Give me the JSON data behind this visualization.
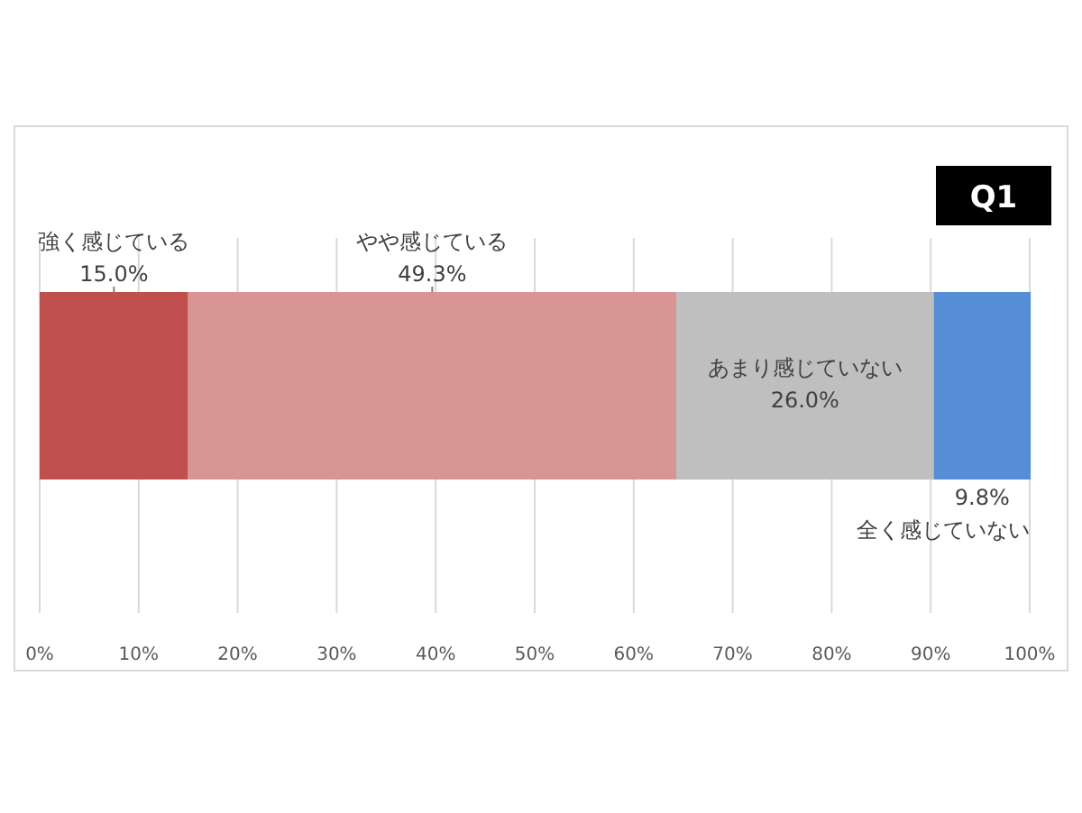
{
  "chart_data": {
    "type": "bar",
    "orientation": "horizontal",
    "stacked": true,
    "title": "Q1",
    "categories": [
      null
    ],
    "series": [
      {
        "name": "強く感じている",
        "color": "#c0504d",
        "values": [
          15.0
        ],
        "value_labels": [
          "15.0%"
        ]
      },
      {
        "name": "やや感じている",
        "color": "#d99594",
        "values": [
          49.3
        ],
        "value_labels": [
          "49.3%"
        ]
      },
      {
        "name": "あまり感じていない",
        "color": "#bfbfbf",
        "values": [
          26.0
        ],
        "value_labels": [
          "26.0%"
        ]
      },
      {
        "name": "全く感じていない",
        "color": "#558ed5",
        "values": [
          9.8
        ],
        "value_labels": [
          "9.8%"
        ]
      }
    ],
    "xlim": [
      0,
      100
    ],
    "xticks": [
      {
        "value": 0,
        "label": "0%"
      },
      {
        "value": 10,
        "label": "10%"
      },
      {
        "value": 20,
        "label": "20%"
      },
      {
        "value": 30,
        "label": "30%"
      },
      {
        "value": 40,
        "label": "40%"
      },
      {
        "value": 50,
        "label": "50%"
      },
      {
        "value": 60,
        "label": "60%"
      },
      {
        "value": 70,
        "label": "70%"
      },
      {
        "value": 80,
        "label": "80%"
      },
      {
        "value": 90,
        "label": "90%"
      },
      {
        "value": 100,
        "label": "100%"
      }
    ],
    "grid": "x",
    "legend": false
  }
}
